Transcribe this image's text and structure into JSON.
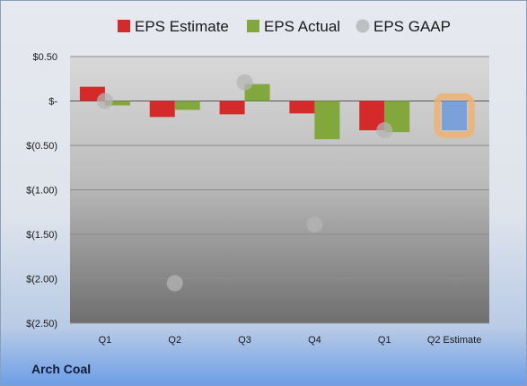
{
  "chart_data": {
    "type": "bar",
    "categories": [
      "Q1",
      "Q2",
      "Q3",
      "Q4",
      "Q1",
      "Q2 Estimate"
    ],
    "series": [
      {
        "name": "EPS Estimate",
        "color": "#d42a2a",
        "values": [
          0.16,
          -0.18,
          -0.15,
          -0.14,
          -0.33,
          -0.33
        ]
      },
      {
        "name": "EPS Actual",
        "color": "#82a73c",
        "values": [
          -0.05,
          -0.1,
          0.19,
          -0.43,
          -0.35,
          null
        ]
      },
      {
        "name": "EPS GAAP",
        "color": "#b4b4b4",
        "marker": "circle",
        "values": [
          0.0,
          -2.05,
          0.21,
          -1.39,
          -0.33,
          null
        ]
      }
    ],
    "highlight": {
      "category": "Q2 Estimate",
      "fill": "#7aa2d8",
      "glow": "#f0b070"
    },
    "ylim": [
      -2.5,
      0.5
    ],
    "yticks": [
      "$0.50",
      "$-",
      "$(0.50)",
      "$(1.00)",
      "$(1.50)",
      "$(2.00)",
      "$(2.50)"
    ],
    "grid": true,
    "legend_position": "top",
    "title": "",
    "xlabel": "",
    "ylabel": ""
  },
  "company": "Arch Coal"
}
